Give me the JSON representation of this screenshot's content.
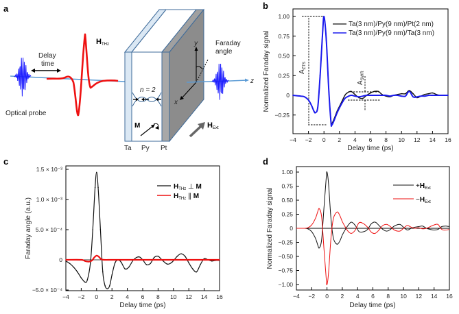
{
  "panel_a": {
    "label": "a",
    "h_thz": "H",
    "h_thz_sub": "THz",
    "delay_time_1": "Delay",
    "delay_time_2": "time",
    "optical_probe": "Optical probe",
    "faraday_angle_1": "Faraday",
    "faraday_angle_2": "angle",
    "axis_y": "y",
    "axis_x": "x",
    "axis_z": "z",
    "n_label": "n = 2",
    "m_label": "M",
    "h_ext": "H",
    "h_ext_sub": "Ext",
    "layer_ta": "Ta",
    "layer_py": "Py",
    "layer_pt": "Pt",
    "colors": {
      "probe": "#1a1aff",
      "thz": "#ee1111",
      "beam": "#5b9bd5",
      "pt_layer": "#8c8c8c",
      "ta_layer": "#dbe8f4"
    }
  },
  "chart_data": [
    {
      "panel": "b",
      "type": "line",
      "title": "",
      "xlabel": "Delay time (ps)",
      "ylabel": "Normalized Faraday signal",
      "xlim": [
        -4,
        16
      ],
      "ylim": [
        -0.38,
        1.1
      ],
      "xticks": [
        -4,
        -2,
        0,
        2,
        4,
        6,
        8,
        10,
        12,
        14,
        16
      ],
      "xtick_labels": [
        "−4",
        "−2",
        "0",
        "2",
        "4",
        "6",
        "8",
        "10",
        "12",
        "14",
        "16"
      ],
      "yticks": [
        -0.25,
        0,
        0.25,
        0.5,
        0.75,
        1.0
      ],
      "ytick_labels": [
        "−0.25",
        "0",
        "0.25",
        "0.50",
        "0.75",
        "1.00"
      ],
      "legend": "top-right",
      "annotations": [
        {
          "text": "A",
          "sub": "ZTS"
        },
        {
          "text": "A",
          "sub": "SWR"
        }
      ],
      "series": [
        {
          "name": "Ta(3 nm)/Py(9 nm)/Pt(2 nm)",
          "color": "#111111",
          "x": [
            -4,
            -3,
            -2.5,
            -2,
            -1.6,
            -1.3,
            -1.1,
            -0.8,
            -0.5,
            -0.2,
            0,
            0.3,
            0.6,
            0.9,
            1.0,
            1.3,
            1.7,
            2.2,
            2.7,
            3.0,
            3.5,
            4.0,
            4.5,
            5.0,
            5.5,
            6.0,
            6.5,
            7.0,
            7.5,
            8.0,
            8.5,
            9.0,
            9.5,
            10,
            10.5,
            11,
            11.5,
            12,
            12.5,
            13,
            13.5,
            14,
            14.5,
            15,
            15.5,
            16
          ],
          "y": [
            0,
            -0.01,
            -0.02,
            -0.06,
            -0.13,
            -0.2,
            -0.22,
            -0.15,
            0.25,
            0.75,
            1.0,
            0.7,
            0.1,
            -0.33,
            -0.36,
            -0.3,
            -0.2,
            -0.1,
            0.0,
            0.03,
            0.05,
            0.01,
            -0.03,
            -0.04,
            0.0,
            0.03,
            0.05,
            0.05,
            0.01,
            -0.01,
            -0.02,
            0.0,
            0.01,
            0.02,
            0.02,
            0.06,
            0.02,
            -0.03,
            -0.01,
            0.01,
            0.02,
            0.03,
            0.01,
            0.0,
            0.0,
            0.0
          ]
        },
        {
          "name": "Ta(3 nm)/Py(9 nm)/Ta(3 nm)",
          "color": "#1a1aee",
          "x": [
            -4,
            -3,
            -2.5,
            -2,
            -1.6,
            -1.3,
            -1.1,
            -0.8,
            -0.5,
            -0.2,
            0,
            0.3,
            0.6,
            0.9,
            1.0,
            1.3,
            1.7,
            2.2,
            2.7,
            3.0,
            3.5,
            4.0,
            4.5,
            5.0,
            5.5,
            6.0,
            6.5,
            7.0,
            7.5,
            8.0,
            8.5,
            9.0,
            9.5,
            10,
            10.5,
            11,
            11.5,
            12,
            12.5,
            13,
            13.5,
            14,
            14.5,
            15,
            15.5,
            16
          ],
          "y": [
            0,
            -0.01,
            -0.02,
            -0.06,
            -0.13,
            -0.2,
            -0.22,
            -0.15,
            0.25,
            0.75,
            1.0,
            0.7,
            0.1,
            -0.34,
            -0.38,
            -0.32,
            -0.22,
            -0.12,
            -0.04,
            -0.02,
            0.0,
            -0.01,
            -0.02,
            -0.01,
            0.0,
            0.0,
            0.0,
            0.0,
            0.0,
            0.0,
            -0.01,
            0.0,
            0.0,
            -0.01,
            -0.01,
            0.05,
            -0.02,
            -0.02,
            -0.01,
            -0.01,
            0.0,
            0.0,
            0.0,
            0.0,
            0.0,
            0.0
          ]
        }
      ]
    },
    {
      "panel": "c",
      "type": "line",
      "title": "",
      "xlabel": "Delay time (ps)",
      "ylabel": "Faraday angle (a.u.)",
      "xlim": [
        -4,
        16
      ],
      "ylim": [
        -0.0005,
        0.0015
      ],
      "xticks": [
        -4,
        -2,
        0,
        2,
        4,
        6,
        8,
        10,
        12,
        14,
        16
      ],
      "xtick_labels": [
        "−4",
        "−2",
        "0",
        "2",
        "4",
        "6",
        "8",
        "10",
        "12",
        "14",
        "16"
      ],
      "yticks": [
        -0.0005,
        0,
        0.0005,
        0.001,
        0.0015
      ],
      "ytick_labels": [
        "−5.0 × 10⁻⁴",
        "0",
        "5.0 × 10⁻⁴",
        "1.0 × 10⁻³",
        "1.5 × 10⁻³"
      ],
      "legend": "top-right",
      "series": [
        {
          "name": "H_THz ⊥ M",
          "legend_main": "H",
          "legend_sub": "THz",
          "legend_rel": " ⊥ ",
          "legend_end": "M",
          "color": "#111111",
          "x": [
            -4,
            -3.5,
            -3,
            -2.5,
            -2,
            -1.5,
            -1.2,
            -0.8,
            -0.5,
            -0.2,
            0,
            0.2,
            0.5,
            0.8,
            1.1,
            1.4,
            1.7,
            2.0,
            2.4,
            2.8,
            3.2,
            3.7,
            4.2,
            4.8,
            5.5,
            6.0,
            6.5,
            7.0,
            7.5,
            8.0,
            8.5,
            9.2,
            9.8,
            10.5,
            11.0,
            11.5,
            12.0,
            12.5,
            13.0,
            13.5,
            14.0,
            14.5,
            15,
            15.5,
            16
          ],
          "y": [
            -2e-05,
            -6e-05,
            -0.00012,
            -0.0002,
            -0.0003,
            -0.00037,
            -0.00033,
            -5e-05,
            0.0005,
            0.0012,
            0.00145,
            0.0012,
            0.0005,
            -0.0002,
            -0.00043,
            -0.00048,
            -0.00043,
            -0.00025,
            -5e-05,
            0.0,
            -4e-05,
            -0.00015,
            -0.00012,
            0.0,
            5e-05,
            0.0,
            -8e-05,
            -6e-05,
            4e-05,
            6e-05,
            0.0,
            -7e-05,
            -4e-05,
            6e-05,
            0.0001,
            6e-05,
            -5e-05,
            -0.00015,
            -0.0002,
            -8e-05,
            2e-05,
            0.0,
            -2e-05,
            -1e-05,
            -1e-05
          ]
        },
        {
          "name": "H_THz ∥ M",
          "legend_main": "H",
          "legend_sub": "THz",
          "legend_rel": " ∥ ",
          "legend_end": "M",
          "color": "#ee1111",
          "x": [
            -4,
            -2,
            -1.5,
            -1,
            -0.6,
            -0.3,
            0,
            0.3,
            0.6,
            1.0,
            2,
            4,
            6,
            8,
            10,
            12,
            14,
            16
          ],
          "y": [
            0,
            0,
            -2e-05,
            -3e-05,
            -1e-05,
            4e-05,
            7e-05,
            5e-05,
            1e-05,
            0,
            0,
            0,
            0,
            0,
            0,
            0,
            0,
            0
          ]
        }
      ]
    },
    {
      "panel": "d",
      "type": "line",
      "title": "",
      "xlabel": "Delay time (ps)",
      "ylabel": "Normalized Faraday signal",
      "xlim": [
        -4,
        16
      ],
      "ylim": [
        -1.1,
        1.1
      ],
      "xticks": [
        -4,
        -2,
        0,
        2,
        4,
        6,
        8,
        10,
        12,
        14,
        16
      ],
      "xtick_labels": [
        "−4",
        "−2",
        "0",
        "2",
        "4",
        "6",
        "8",
        "10",
        "12",
        "14",
        "16"
      ],
      "yticks": [
        -1.0,
        -0.75,
        -0.5,
        -0.25,
        0,
        0.25,
        0.5,
        0.75,
        1.0
      ],
      "ytick_labels": [
        "−1.00",
        "−0.75",
        "−0.50",
        "−0.25",
        "0",
        "0.25",
        "0.50",
        "0.75",
        "1.00"
      ],
      "legend": "top-right",
      "series": [
        {
          "name": "+H_Ext",
          "legend_pre": "+",
          "legend_main": "H",
          "legend_sub": "Ext",
          "color": "#111111",
          "x": [
            -4,
            -3,
            -2.5,
            -2,
            -1.5,
            -1.2,
            -1.0,
            -0.7,
            -0.4,
            -0.1,
            0,
            0.2,
            0.5,
            0.8,
            1.1,
            1.4,
            1.7,
            2.0,
            2.4,
            2.8,
            3.2,
            3.7,
            4.2,
            4.8,
            5.3,
            5.8,
            6.3,
            6.8,
            7.3,
            7.8,
            8.3,
            8.8,
            9.5,
            10.0,
            10.5,
            11,
            11.5,
            12,
            12.5,
            13,
            13.5,
            14,
            14.5,
            15,
            15.5,
            16
          ],
          "y": [
            0,
            0,
            -0.01,
            -0.06,
            -0.18,
            -0.3,
            -0.35,
            -0.2,
            0.35,
            0.9,
            1.0,
            0.8,
            0.2,
            -0.15,
            -0.26,
            -0.28,
            -0.22,
            -0.12,
            -0.02,
            0.06,
            0.11,
            0.05,
            -0.06,
            -0.06,
            -0.02,
            0.08,
            0.11,
            0.05,
            -0.02,
            -0.05,
            -0.02,
            0.04,
            0.07,
            0.02,
            -0.03,
            0.0,
            0.02,
            0.03,
            0.04,
            0.0,
            -0.02,
            -0.03,
            -0.02,
            0.03,
            0.04,
            0.03
          ]
        },
        {
          "name": "−H_Ext",
          "legend_pre": "−",
          "legend_main": "H",
          "legend_sub": "Ext",
          "color": "#ee1111",
          "x": [
            -4,
            -3,
            -2.5,
            -2,
            -1.5,
            -1.2,
            -1.0,
            -0.7,
            -0.4,
            -0.1,
            0,
            0.2,
            0.5,
            0.8,
            1.1,
            1.4,
            1.7,
            2.0,
            2.4,
            2.8,
            3.2,
            3.7,
            4.2,
            4.8,
            5.3,
            5.8,
            6.3,
            6.8,
            7.3,
            7.8,
            8.3,
            8.8,
            9.5,
            10.0,
            10.5,
            11,
            11.5,
            12,
            12.5,
            13,
            13.5,
            14,
            14.5,
            15,
            15.5,
            16
          ],
          "y": [
            0,
            0,
            0.01,
            0.06,
            0.18,
            0.3,
            0.35,
            0.2,
            -0.35,
            -0.9,
            -1.0,
            -0.8,
            -0.2,
            0.15,
            0.26,
            0.29,
            0.22,
            0.12,
            0.02,
            -0.06,
            -0.09,
            -0.03,
            0.1,
            0.08,
            0.02,
            -0.07,
            -0.09,
            -0.03,
            0.05,
            0.07,
            0.03,
            -0.03,
            -0.05,
            0.0,
            0.05,
            0.02,
            0.0,
            0.01,
            -0.01,
            0.0,
            0.03,
            0.06,
            0.07,
            -0.02,
            -0.03,
            -0.02
          ]
        }
      ]
    }
  ],
  "panel_labels": {
    "b": "b",
    "c": "c",
    "d": "d"
  }
}
